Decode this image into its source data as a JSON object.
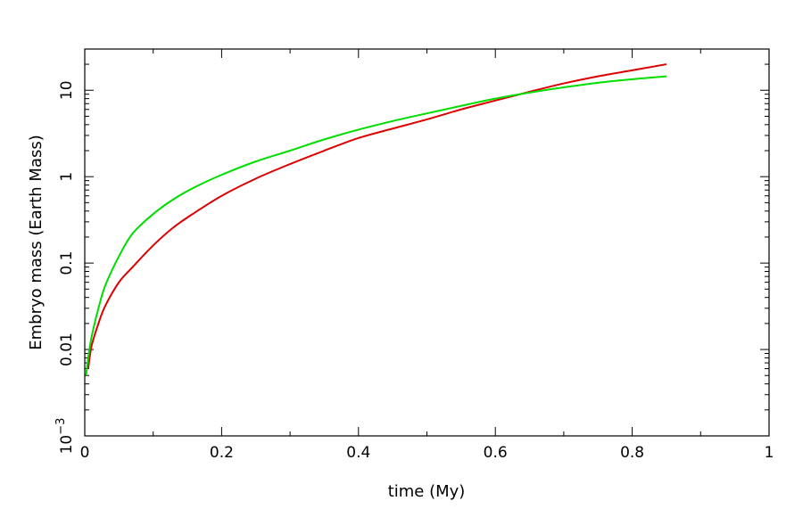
{
  "chart_data": {
    "type": "line",
    "xlabel": "time (My)",
    "ylabel": "Embryo mass (Earth Mass)",
    "xlim": [
      0,
      1
    ],
    "ylim": [
      0.001,
      30
    ],
    "yscale": "log",
    "grid": false,
    "x_ticks": [
      {
        "value": 0,
        "label": "0"
      },
      {
        "value": 0.2,
        "label": "0.2"
      },
      {
        "value": 0.4,
        "label": "0.4"
      },
      {
        "value": 0.6,
        "label": "0.6"
      },
      {
        "value": 0.8,
        "label": "0.8"
      },
      {
        "value": 1,
        "label": "1"
      }
    ],
    "y_ticks": [
      {
        "value": 0.001,
        "base": "10",
        "exp": "−3"
      },
      {
        "value": 0.01,
        "label": "0.01"
      },
      {
        "value": 0.1,
        "label": "0.1"
      },
      {
        "value": 1,
        "label": "1"
      },
      {
        "value": 10,
        "label": "10"
      }
    ],
    "series": [
      {
        "color": "#dd0000",
        "x": [
          0.005,
          0.01,
          0.02,
          0.03,
          0.05,
          0.07,
          0.1,
          0.13,
          0.16,
          0.2,
          0.25,
          0.3,
          0.35,
          0.4,
          0.45,
          0.5,
          0.55,
          0.6,
          0.65,
          0.7,
          0.75,
          0.8,
          0.85
        ],
        "y": [
          0.006,
          0.011,
          0.02,
          0.032,
          0.06,
          0.09,
          0.16,
          0.26,
          0.38,
          0.6,
          0.95,
          1.4,
          2.0,
          2.8,
          3.6,
          4.6,
          6.0,
          7.6,
          9.6,
          12.0,
          14.5,
          17.0,
          20.0
        ]
      },
      {
        "color": "#00dd00",
        "x": [
          0.002,
          0.005,
          0.01,
          0.02,
          0.03,
          0.05,
          0.07,
          0.1,
          0.13,
          0.16,
          0.2,
          0.25,
          0.3,
          0.35,
          0.4,
          0.45,
          0.5,
          0.55,
          0.6,
          0.65,
          0.7,
          0.75,
          0.8,
          0.85
        ],
        "y": [
          0.005,
          0.008,
          0.014,
          0.03,
          0.055,
          0.12,
          0.22,
          0.37,
          0.55,
          0.75,
          1.05,
          1.5,
          2.0,
          2.7,
          3.5,
          4.4,
          5.4,
          6.6,
          8.0,
          9.4,
          10.8,
          12.2,
          13.4,
          14.5
        ]
      }
    ]
  }
}
